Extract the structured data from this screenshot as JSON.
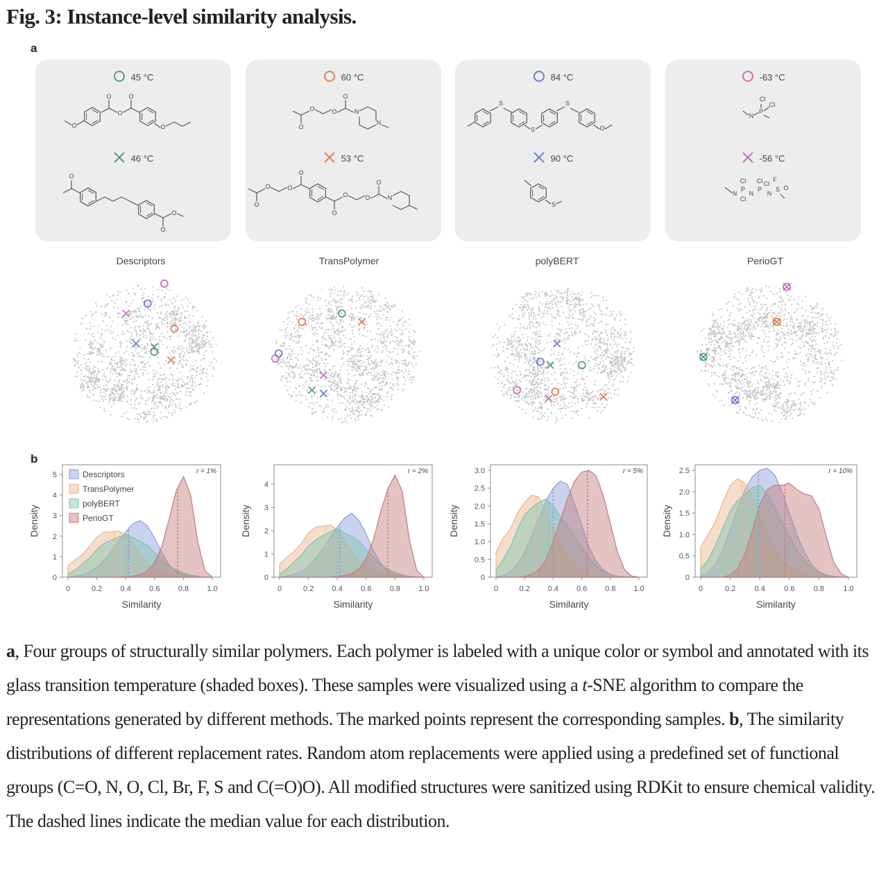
{
  "figure": {
    "title": "Fig. 3: Instance-level similarity analysis.",
    "panel_a_label": "a",
    "panel_b_label": "b"
  },
  "colors": {
    "green": "#5a9e78",
    "orange": "#e0825a",
    "blue": "#6f7fc8",
    "pink": "#c474b4",
    "descriptors": "#8c9bd8",
    "transpolymer": "#e8b48a",
    "polybert": "#7fc4b2",
    "periogt": "#c47a7a",
    "box_bg": "#ededed",
    "tsne_points": "#c4c4c4"
  },
  "groups": [
    {
      "color_key": "green",
      "circle_tg": "45 °C",
      "cross_tg": "46 °C",
      "circle_structure": "*-O-C6H4-C(=O)-O-C(=O)-C6H4-O-CH2CH2-*",
      "cross_structure": "*-C(=O)-C6H4-(CH2)4-C6H4-C(=O)-O-*"
    },
    {
      "color_key": "orange",
      "circle_tg": "60 °C",
      "cross_tg": "53 °C",
      "circle_structure": "*-C(=O)-O-CH2CH2-O-C(=O)-N(piperazine)N-*",
      "cross_structure": "*-C(=O)-O-CH2CH2-O-C(=O)-C6H4-C(=O)-O-CH2CH2-O-C(=O)-N(piperidine)-*"
    },
    {
      "color_key": "blue",
      "circle_tg": "84 °C",
      "cross_tg": "90 °C",
      "circle_structure": "*-C6H4-S-C6H4-S-C6H4-S-C6H4-O-*",
      "cross_structure": "*-C6H4-S-*"
    },
    {
      "color_key": "pink",
      "circle_tg": "-63 °C",
      "cross_tg": "-56 °C",
      "circle_structure": "*-N=P(Cl)(Cl)-*",
      "cross_structure": "*-N=P(Cl)(Cl)-N=P(Cl)(Cl)-N=S(F)(=O)-*"
    }
  ],
  "methods": [
    "Descriptors",
    "TransPolymer",
    "polyBERT",
    "PerioGT"
  ],
  "tsne": [
    {
      "method": "Descriptors",
      "markers": [
        {
          "color_key": "pink",
          "shape": "circle",
          "x": 0.62,
          "y": 0.07
        },
        {
          "color_key": "blue",
          "shape": "circle",
          "x": 0.52,
          "y": 0.19
        },
        {
          "color_key": "pink",
          "shape": "cross",
          "x": 0.39,
          "y": 0.25
        },
        {
          "color_key": "orange",
          "shape": "circle",
          "x": 0.68,
          "y": 0.34
        },
        {
          "color_key": "blue",
          "shape": "cross",
          "x": 0.45,
          "y": 0.43
        },
        {
          "color_key": "green",
          "shape": "cross",
          "x": 0.56,
          "y": 0.45
        },
        {
          "color_key": "green",
          "shape": "circle",
          "x": 0.56,
          "y": 0.48
        },
        {
          "color_key": "orange",
          "shape": "cross",
          "x": 0.66,
          "y": 0.53
        }
      ]
    },
    {
      "method": "TransPolymer",
      "markers": [
        {
          "color_key": "green",
          "shape": "circle",
          "x": 0.47,
          "y": 0.25
        },
        {
          "color_key": "orange",
          "shape": "circle",
          "x": 0.23,
          "y": 0.3
        },
        {
          "color_key": "orange",
          "shape": "cross",
          "x": 0.59,
          "y": 0.3
        },
        {
          "color_key": "blue",
          "shape": "circle",
          "x": 0.09,
          "y": 0.49
        },
        {
          "color_key": "pink",
          "shape": "circle",
          "x": 0.07,
          "y": 0.52
        },
        {
          "color_key": "pink",
          "shape": "cross",
          "x": 0.36,
          "y": 0.62
        },
        {
          "color_key": "green",
          "shape": "cross",
          "x": 0.29,
          "y": 0.71
        },
        {
          "color_key": "blue",
          "shape": "cross",
          "x": 0.36,
          "y": 0.73
        }
      ]
    },
    {
      "method": "polyBERT",
      "markers": [
        {
          "color_key": "blue",
          "shape": "cross",
          "x": 0.47,
          "y": 0.43
        },
        {
          "color_key": "blue",
          "shape": "circle",
          "x": 0.37,
          "y": 0.54
        },
        {
          "color_key": "green",
          "shape": "cross",
          "x": 0.43,
          "y": 0.56
        },
        {
          "color_key": "green",
          "shape": "circle",
          "x": 0.62,
          "y": 0.56
        },
        {
          "color_key": "pink",
          "shape": "circle",
          "x": 0.23,
          "y": 0.71
        },
        {
          "color_key": "orange",
          "shape": "circle",
          "x": 0.46,
          "y": 0.72
        },
        {
          "color_key": "pink",
          "shape": "cross",
          "x": 0.42,
          "y": 0.76
        },
        {
          "color_key": "orange",
          "shape": "cross",
          "x": 0.75,
          "y": 0.75
        }
      ]
    },
    {
      "method": "PerioGT",
      "markers": [
        {
          "color_key": "pink",
          "shape": "both",
          "x": 0.6,
          "y": 0.09
        },
        {
          "color_key": "orange",
          "shape": "both",
          "x": 0.54,
          "y": 0.3
        },
        {
          "color_key": "green",
          "shape": "both",
          "x": 0.1,
          "y": 0.51
        },
        {
          "color_key": "blue",
          "shape": "both",
          "x": 0.29,
          "y": 0.77
        }
      ]
    }
  ],
  "chart_data": [
    {
      "type": "area",
      "annotation": "r = 1%",
      "xlabel": "Similarity",
      "ylabel": "Density",
      "xlim": [
        0,
        1.0
      ],
      "ylim": [
        0,
        5.2
      ],
      "xticks": [
        "0",
        "0.2",
        "0.4",
        "0.6",
        "0.8",
        "1.0"
      ],
      "yticks": [
        "0",
        "1",
        "2",
        "3",
        "4",
        "5"
      ],
      "ytick_values": [
        0,
        1,
        2,
        3,
        4,
        5
      ],
      "legend": [
        "Descriptors",
        "TransPolymer",
        "polyBERT",
        "PerioGT"
      ],
      "legend_position": "top-left",
      "x": [
        0,
        0.05,
        0.1,
        0.15,
        0.2,
        0.25,
        0.3,
        0.35,
        0.4,
        0.45,
        0.5,
        0.55,
        0.6,
        0.65,
        0.7,
        0.75,
        0.8,
        0.85,
        0.9,
        0.95,
        1.0
      ],
      "series": [
        {
          "name": "Descriptors",
          "median": 0.42,
          "values": [
            0,
            0.05,
            0.12,
            0.25,
            0.45,
            0.8,
            1.25,
            1.75,
            2.2,
            2.6,
            2.75,
            2.5,
            1.9,
            1.2,
            0.6,
            0.28,
            0.12,
            0.05,
            0.02,
            0,
            0
          ]
        },
        {
          "name": "TransPolymer",
          "median": 0.32,
          "values": [
            0.55,
            0.85,
            1.1,
            1.5,
            1.95,
            2.2,
            2.2,
            2.25,
            2.05,
            1.6,
            1.1,
            0.7,
            0.4,
            0.25,
            0.15,
            0.1,
            0.05,
            0.02,
            0,
            0,
            0
          ]
        },
        {
          "name": "polyBERT",
          "median": 0.4,
          "values": [
            0.15,
            0.35,
            0.65,
            0.95,
            1.35,
            1.65,
            1.8,
            1.95,
            2.1,
            1.9,
            1.75,
            1.55,
            1.2,
            0.85,
            0.55,
            0.35,
            0.2,
            0.1,
            0.04,
            0.01,
            0
          ]
        },
        {
          "name": "PerioGT",
          "median": 0.76,
          "values": [
            0,
            0,
            0,
            0,
            0,
            0,
            0,
            0,
            0.02,
            0.05,
            0.12,
            0.3,
            0.7,
            1.5,
            2.8,
            4.2,
            4.9,
            4.0,
            1.7,
            0.3,
            0
          ]
        }
      ]
    },
    {
      "type": "area",
      "annotation": "r = 2%",
      "xlabel": "Similarity",
      "ylabel": "Density",
      "xlim": [
        0,
        1.0
      ],
      "ylim": [
        0,
        4.6
      ],
      "xticks": [
        "0",
        "0.2",
        "0.4",
        "0.6",
        "0.8",
        "1.0"
      ],
      "yticks": [
        "0",
        "1",
        "2",
        "3",
        "4"
      ],
      "ytick_values": [
        0,
        1,
        2,
        3,
        4
      ],
      "x": [
        0,
        0.05,
        0.1,
        0.15,
        0.2,
        0.25,
        0.3,
        0.35,
        0.4,
        0.45,
        0.5,
        0.55,
        0.6,
        0.65,
        0.7,
        0.75,
        0.8,
        0.85,
        0.9,
        0.95,
        1.0
      ],
      "series": [
        {
          "name": "Descriptors",
          "median": 0.42,
          "values": [
            0,
            0.05,
            0.12,
            0.25,
            0.45,
            0.8,
            1.2,
            1.7,
            2.15,
            2.55,
            2.75,
            2.45,
            1.85,
            1.15,
            0.6,
            0.28,
            0.12,
            0.05,
            0.02,
            0,
            0
          ]
        },
        {
          "name": "TransPolymer",
          "median": 0.32,
          "values": [
            0.55,
            0.85,
            1.1,
            1.45,
            1.9,
            2.15,
            2.2,
            2.25,
            2.05,
            1.6,
            1.1,
            0.7,
            0.4,
            0.25,
            0.15,
            0.1,
            0.05,
            0.02,
            0,
            0,
            0
          ]
        },
        {
          "name": "polyBERT",
          "median": 0.4,
          "values": [
            0.15,
            0.35,
            0.65,
            0.95,
            1.35,
            1.6,
            1.8,
            1.95,
            2.1,
            1.9,
            1.75,
            1.55,
            1.2,
            0.85,
            0.55,
            0.35,
            0.2,
            0.1,
            0.04,
            0.01,
            0
          ]
        },
        {
          "name": "PerioGT",
          "median": 0.75,
          "values": [
            0,
            0,
            0,
            0,
            0,
            0,
            0,
            0,
            0.03,
            0.07,
            0.15,
            0.35,
            0.8,
            1.6,
            2.8,
            3.8,
            4.4,
            3.7,
            1.6,
            0.3,
            0
          ]
        }
      ]
    },
    {
      "type": "area",
      "annotation": "r = 5%",
      "xlabel": "Similarity",
      "ylabel": "Density",
      "xlim": [
        0,
        1.0
      ],
      "ylim": [
        0,
        3.0
      ],
      "xticks": [
        "0",
        "0.2",
        "0.4",
        "0.6",
        "0.8",
        "1.0"
      ],
      "yticks": [
        "0",
        "0.5",
        "1.0",
        "1.5",
        "2.0",
        "2.5",
        "3.0"
      ],
      "ytick_values": [
        0,
        0.5,
        1.0,
        1.5,
        2.0,
        2.5,
        3.0
      ],
      "x": [
        0,
        0.05,
        0.1,
        0.15,
        0.2,
        0.25,
        0.3,
        0.35,
        0.4,
        0.45,
        0.5,
        0.55,
        0.6,
        0.65,
        0.7,
        0.75,
        0.8,
        0.85,
        0.9,
        0.95,
        1.0
      ],
      "series": [
        {
          "name": "Descriptors",
          "median": 0.4,
          "values": [
            0,
            0.05,
            0.15,
            0.35,
            0.7,
            1.15,
            1.65,
            2.15,
            2.5,
            2.7,
            2.6,
            2.05,
            1.45,
            0.85,
            0.45,
            0.2,
            0.08,
            0.03,
            0.01,
            0,
            0
          ]
        },
        {
          "name": "TransPolymer",
          "median": 0.28,
          "values": [
            0.7,
            1.1,
            1.35,
            1.8,
            2.1,
            2.3,
            2.25,
            1.85,
            1.35,
            0.9,
            0.6,
            0.38,
            0.22,
            0.12,
            0.07,
            0.04,
            0.02,
            0.01,
            0,
            0,
            0
          ]
        },
        {
          "name": "polyBERT",
          "median": 0.37,
          "values": [
            0.2,
            0.5,
            0.85,
            1.35,
            1.75,
            1.95,
            2.1,
            2.2,
            2.0,
            1.7,
            1.45,
            1.15,
            0.85,
            0.55,
            0.32,
            0.17,
            0.08,
            0.03,
            0.01,
            0,
            0
          ]
        },
        {
          "name": "PerioGT",
          "median": 0.64,
          "values": [
            0,
            0,
            0,
            0,
            0.02,
            0.08,
            0.2,
            0.5,
            1.0,
            1.6,
            2.2,
            2.7,
            2.95,
            3.0,
            2.85,
            2.3,
            1.5,
            0.7,
            0.2,
            0.03,
            0
          ]
        }
      ]
    },
    {
      "type": "area",
      "annotation": "r = 10%",
      "xlabel": "Similarity",
      "ylabel": "Density",
      "xlim": [
        0,
        1.0
      ],
      "ylim": [
        0,
        2.5
      ],
      "xticks": [
        "0",
        "0.2",
        "0.4",
        "0.6",
        "0.8",
        "1.0"
      ],
      "yticks": [
        "0",
        "0.5",
        "1.0",
        "1.5",
        "2.0",
        "2.5"
      ],
      "ytick_values": [
        0,
        0.5,
        1.0,
        1.5,
        2.0,
        2.5
      ],
      "x": [
        0,
        0.05,
        0.1,
        0.15,
        0.2,
        0.25,
        0.3,
        0.35,
        0.4,
        0.45,
        0.5,
        0.55,
        0.6,
        0.65,
        0.7,
        0.75,
        0.8,
        0.85,
        0.9,
        0.95,
        1.0
      ],
      "series": [
        {
          "name": "Descriptors",
          "median": 0.39,
          "values": [
            0.02,
            0.1,
            0.3,
            0.65,
            1.1,
            1.6,
            2.05,
            2.35,
            2.5,
            2.55,
            2.4,
            2.0,
            1.5,
            1.0,
            0.6,
            0.3,
            0.13,
            0.05,
            0.02,
            0,
            0
          ]
        },
        {
          "name": "TransPolymer",
          "median": 0.28,
          "values": [
            0.7,
            1.0,
            1.3,
            1.75,
            2.15,
            2.3,
            2.2,
            1.9,
            1.45,
            1.0,
            0.65,
            0.42,
            0.25,
            0.14,
            0.08,
            0.04,
            0.02,
            0.01,
            0,
            0,
            0
          ]
        },
        {
          "name": "polyBERT",
          "median": 0.38,
          "values": [
            0.2,
            0.4,
            0.75,
            1.15,
            1.55,
            1.8,
            1.95,
            2.1,
            2.15,
            1.95,
            1.65,
            1.3,
            0.95,
            0.65,
            0.4,
            0.22,
            0.1,
            0.04,
            0.01,
            0,
            0
          ]
        },
        {
          "name": "PerioGT",
          "median": 0.57,
          "values": [
            0,
            0,
            0,
            0,
            0.05,
            0.2,
            0.55,
            1.1,
            1.7,
            2.05,
            2.15,
            2.15,
            2.2,
            2.05,
            1.95,
            1.9,
            1.6,
            0.95,
            0.35,
            0.08,
            0
          ]
        }
      ]
    }
  ],
  "caption": {
    "a_label": "a",
    "a_text_1": ", Four groups of structurally similar polymers. Each polymer is labeled with a unique color or symbol and annotated with its glass transition temperature (shaded boxes). These samples were visualized using a ",
    "a_italic": "t",
    "a_text_2": "-SNE algorithm to compare the representations generated by different methods. The marked points represent the corresponding samples. ",
    "b_label": "b",
    "b_text": ", The similarity distributions of different replacement rates. Random atom replacements were applied using a predefined set of functional groups (C=O, N, O, Cl, Br, F, S and C(=O)O). All modified structures were sanitized using RDKit to ensure chemical validity. The dashed lines indicate the median value for each distribution."
  }
}
